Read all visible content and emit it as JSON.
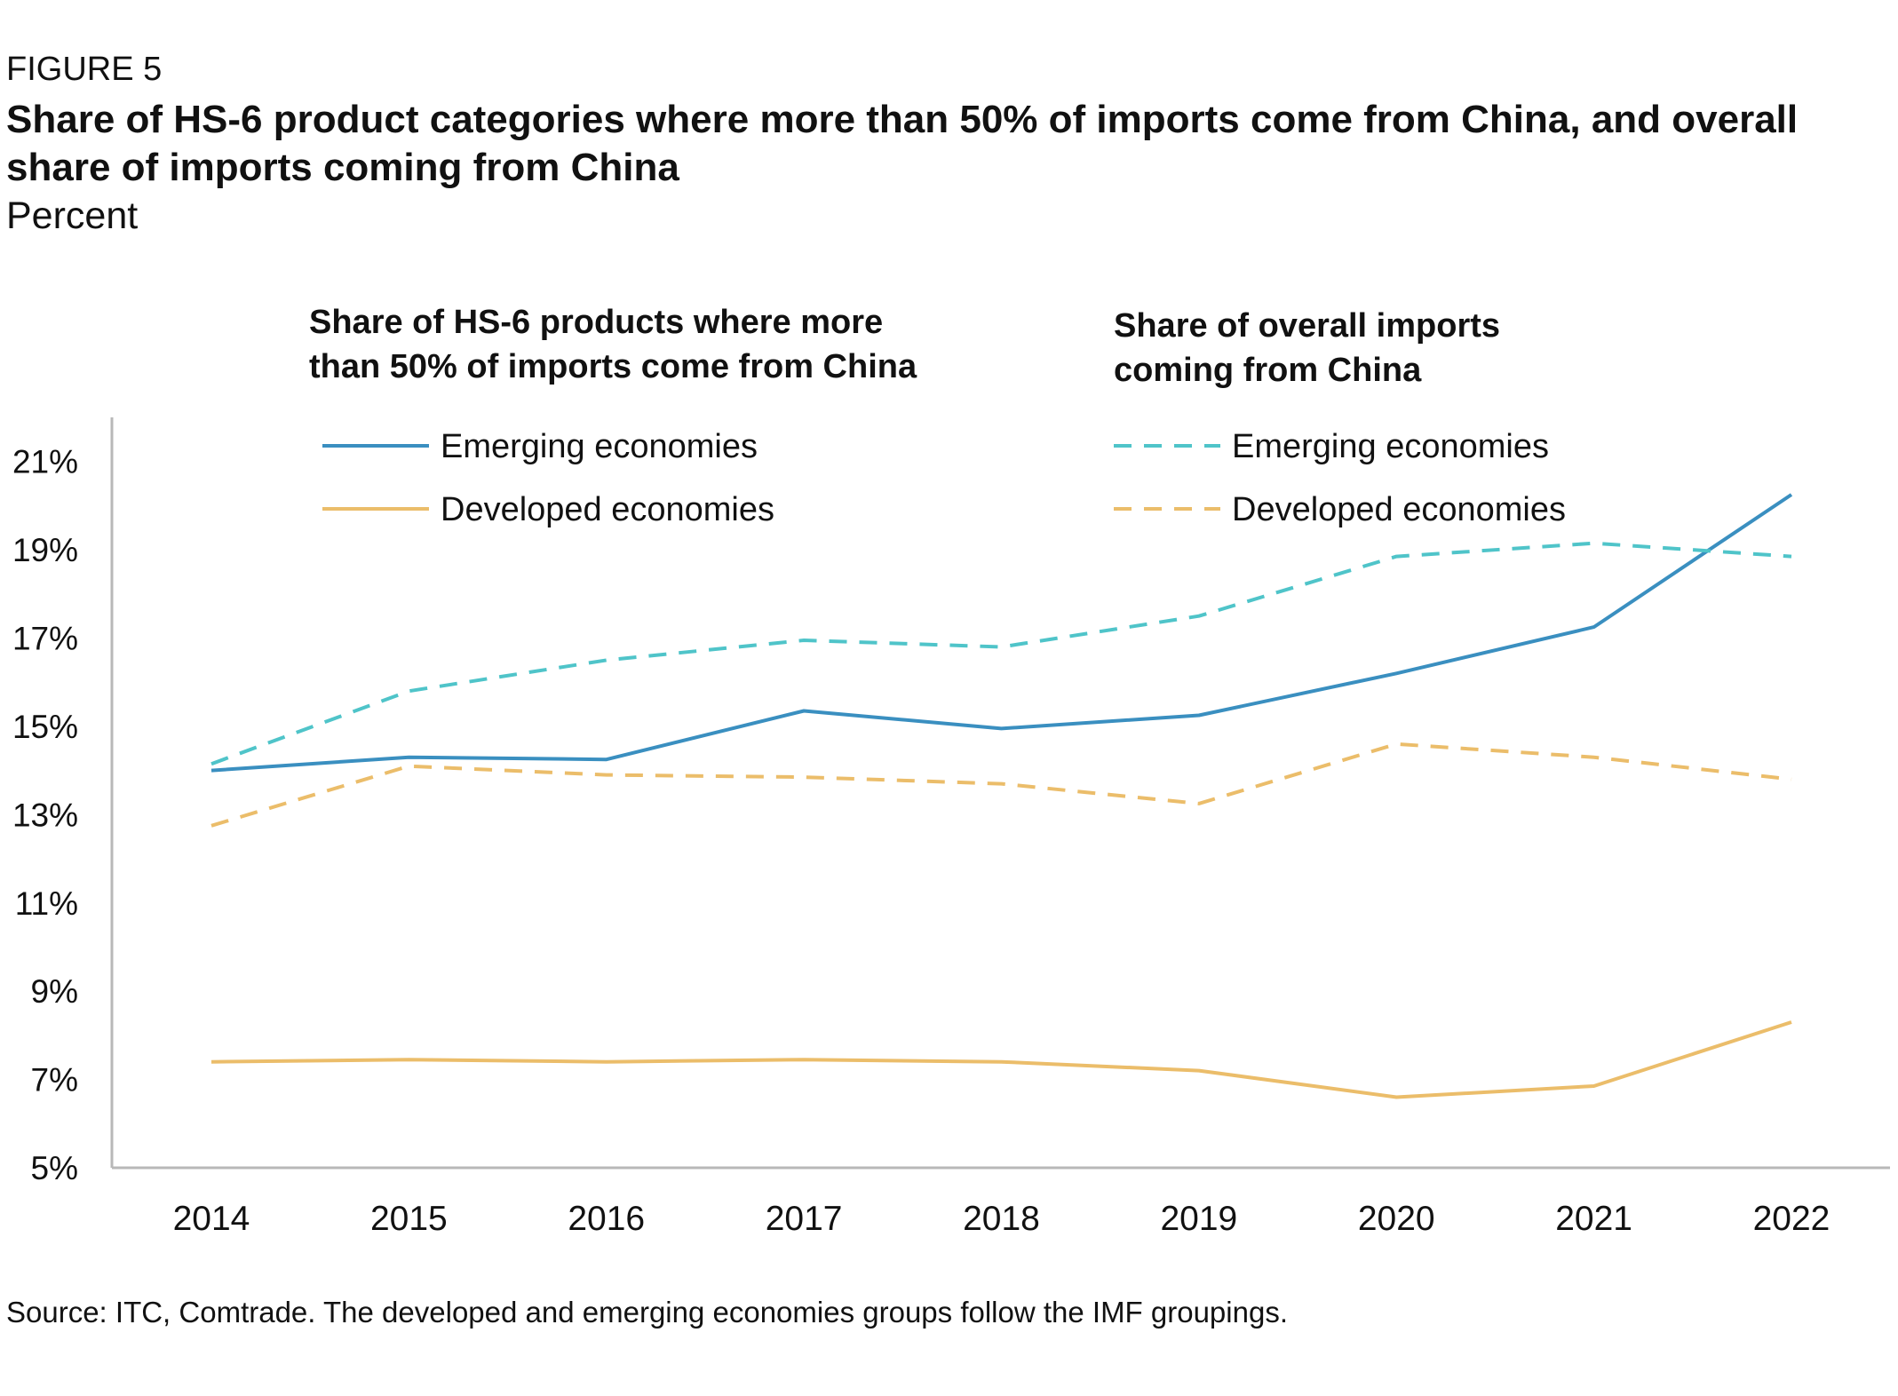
{
  "figure_label": "FIGURE 5",
  "title": "Share of HS-6 product categories where more than 50% of imports come from China, and overall share of imports coming from China",
  "subtitle": "Percent",
  "source": "Source: ITC, Comtrade. The developed and emerging economies groups follow the IMF groupings.",
  "colors": {
    "emerging_solid": "#3a8fc0",
    "emerging_dashed": "#4fc4c9",
    "developed": "#ebbd6a",
    "axis": "#b8b8b8"
  },
  "chart_data": {
    "type": "line",
    "x": [
      "2014",
      "2015",
      "2016",
      "2017",
      "2018",
      "2019",
      "2020",
      "2021",
      "2022"
    ],
    "ylim": [
      5,
      22
    ],
    "yticks": [
      "5%",
      "7%",
      "9%",
      "11%",
      "13%",
      "15%",
      "17%",
      "19%",
      "21%"
    ],
    "ytick_values": [
      5,
      7,
      9,
      11,
      13,
      15,
      17,
      19,
      21
    ],
    "grid": false,
    "legend_groups": [
      {
        "heading_lines": [
          "Share of HS-6 products where more",
          "than 50% of imports come from China"
        ],
        "style": "solid",
        "entries": [
          "Emerging economies",
          "Developed economies"
        ]
      },
      {
        "heading_lines": [
          "Share of overall imports",
          "coming from China"
        ],
        "style": "dashed",
        "entries": [
          "Emerging economies",
          "Developed economies"
        ]
      }
    ],
    "series": [
      {
        "name": "Emerging economies",
        "group": 0,
        "style": "solid",
        "color": "#3a8fc0",
        "values": [
          14.0,
          14.3,
          14.25,
          15.35,
          14.95,
          15.25,
          16.2,
          17.25,
          20.25
        ]
      },
      {
        "name": "Developed economies",
        "group": 0,
        "style": "solid",
        "color": "#ebbd6a",
        "values": [
          7.4,
          7.45,
          7.4,
          7.45,
          7.4,
          7.2,
          6.6,
          6.85,
          8.3
        ]
      },
      {
        "name": "Emerging economies",
        "group": 1,
        "style": "dashed",
        "color": "#4fc4c9",
        "values": [
          14.15,
          15.8,
          16.5,
          16.95,
          16.8,
          17.5,
          18.85,
          19.15,
          18.85
        ]
      },
      {
        "name": "Developed economies",
        "group": 1,
        "style": "dashed",
        "color": "#ebbd6a",
        "values": [
          12.75,
          14.1,
          13.9,
          13.85,
          13.7,
          13.25,
          14.6,
          14.3,
          13.8
        ]
      }
    ]
  }
}
